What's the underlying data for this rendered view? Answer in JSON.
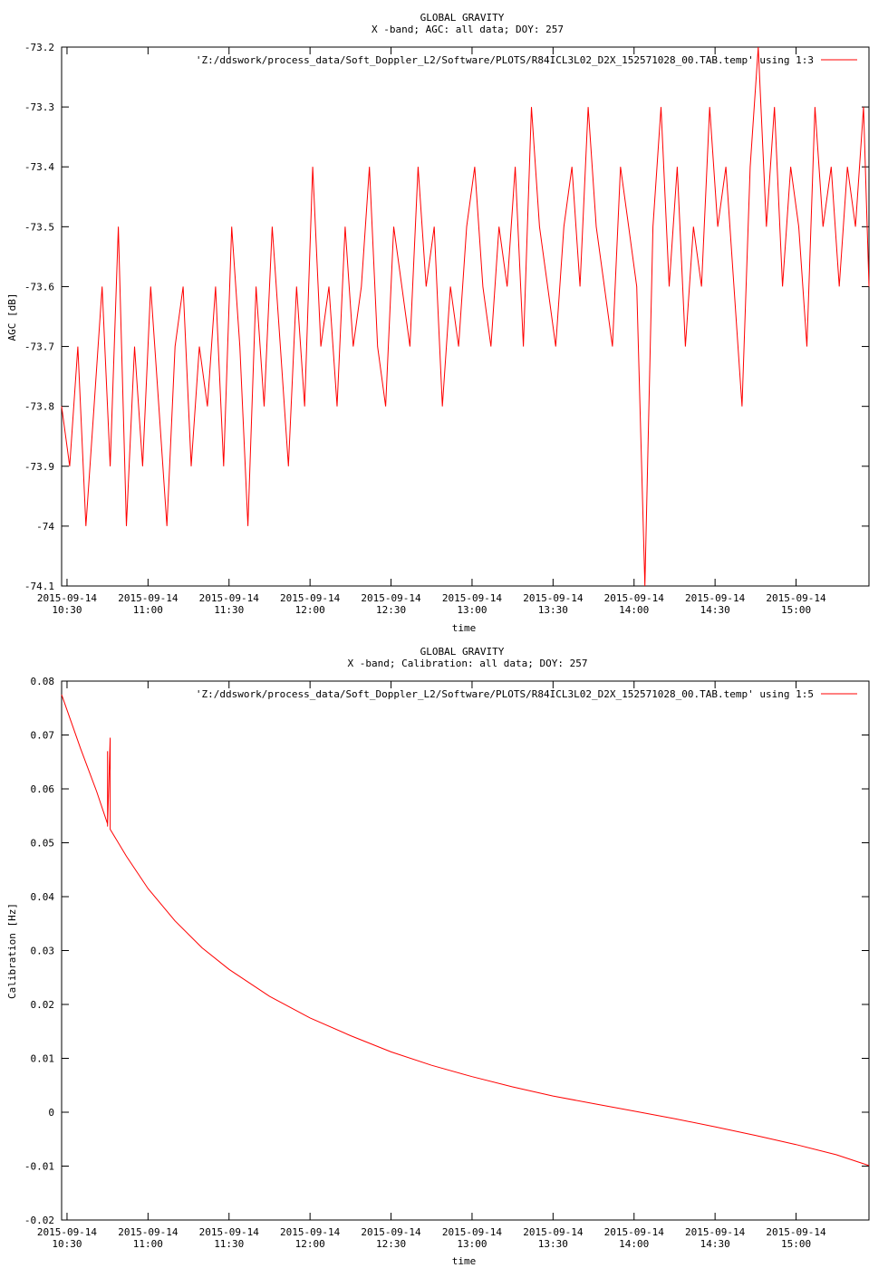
{
  "chart_data": [
    {
      "type": "line",
      "title": "GLOBAL GRAVITY",
      "subtitle": "X -band; AGC: all data; DOY: 257",
      "xlabel": "time",
      "ylabel": "AGC [dB]",
      "xlim": [
        "2015-09-14 10:28",
        "2015-09-14 15:27"
      ],
      "ylim": [
        -74.1,
        -73.2
      ],
      "x_ticks": [
        "2015-09-14 10:30",
        "2015-09-14 11:00",
        "2015-09-14 11:30",
        "2015-09-14 12:00",
        "2015-09-14 12:30",
        "2015-09-14 13:00",
        "2015-09-14 13:30",
        "2015-09-14 14:00",
        "2015-09-14 14:30",
        "2015-09-14 15:00"
      ],
      "x_tick_labels": [
        [
          "2015-09-14",
          "10:30"
        ],
        [
          "2015-09-14",
          "11:00"
        ],
        [
          "2015-09-14",
          "11:30"
        ],
        [
          "2015-09-14",
          "12:00"
        ],
        [
          "2015-09-14",
          "12:30"
        ],
        [
          "2015-09-14",
          "13:00"
        ],
        [
          "2015-09-14",
          "13:30"
        ],
        [
          "2015-09-14",
          "14:00"
        ],
        [
          "2015-09-14",
          "14:30"
        ],
        [
          "2015-09-14",
          "15:00"
        ]
      ],
      "y_ticks": [
        -73.2,
        -73.3,
        -73.4,
        -73.5,
        -73.6,
        -73.7,
        -73.8,
        -73.9,
        -74,
        -74.1
      ],
      "y_tick_labels": [
        "-73.2",
        "-73.3",
        "-73.4",
        "-73.5",
        "-73.6",
        "-73.7",
        "-73.8",
        "-73.9",
        "-74",
        "-74.1"
      ],
      "grid": false,
      "legend_position": "top-right",
      "series": [
        {
          "name": "'Z:/ddswork/process_data/Soft_Doppler_L2/Software/PLOTS/R84ICL3L02_D2X_152571028_00.TAB.temp' using 1:3",
          "color": "#ff0000",
          "x": [
            "2015-09-14 10:28",
            "2015-09-14 10:31",
            "2015-09-14 10:34",
            "2015-09-14 10:37",
            "2015-09-14 10:40",
            "2015-09-14 10:43",
            "2015-09-14 10:46",
            "2015-09-14 10:49",
            "2015-09-14 10:52",
            "2015-09-14 10:55",
            "2015-09-14 10:58",
            "2015-09-14 11:01",
            "2015-09-14 11:04",
            "2015-09-14 11:07",
            "2015-09-14 11:10",
            "2015-09-14 11:13",
            "2015-09-14 11:16",
            "2015-09-14 11:19",
            "2015-09-14 11:22",
            "2015-09-14 11:25",
            "2015-09-14 11:28",
            "2015-09-14 11:31",
            "2015-09-14 11:34",
            "2015-09-14 11:37",
            "2015-09-14 11:40",
            "2015-09-14 11:43",
            "2015-09-14 11:46",
            "2015-09-14 11:49",
            "2015-09-14 11:52",
            "2015-09-14 11:55",
            "2015-09-14 11:58",
            "2015-09-14 12:01",
            "2015-09-14 12:04",
            "2015-09-14 12:07",
            "2015-09-14 12:10",
            "2015-09-14 12:13",
            "2015-09-14 12:16",
            "2015-09-14 12:19",
            "2015-09-14 12:22",
            "2015-09-14 12:25",
            "2015-09-14 12:28",
            "2015-09-14 12:31",
            "2015-09-14 12:34",
            "2015-09-14 12:37",
            "2015-09-14 12:40",
            "2015-09-14 12:43",
            "2015-09-14 12:46",
            "2015-09-14 12:49",
            "2015-09-14 12:52",
            "2015-09-14 12:55",
            "2015-09-14 12:58",
            "2015-09-14 13:01",
            "2015-09-14 13:04",
            "2015-09-14 13:07",
            "2015-09-14 13:10",
            "2015-09-14 13:13",
            "2015-09-14 13:16",
            "2015-09-14 13:19",
            "2015-09-14 13:22",
            "2015-09-14 13:25",
            "2015-09-14 13:28",
            "2015-09-14 13:31",
            "2015-09-14 13:34",
            "2015-09-14 13:37",
            "2015-09-14 13:40",
            "2015-09-14 13:43",
            "2015-09-14 13:46",
            "2015-09-14 13:49",
            "2015-09-14 13:52",
            "2015-09-14 13:55",
            "2015-09-14 13:58",
            "2015-09-14 14:01",
            "2015-09-14 14:04",
            "2015-09-14 14:07",
            "2015-09-14 14:10",
            "2015-09-14 14:13",
            "2015-09-14 14:16",
            "2015-09-14 14:19",
            "2015-09-14 14:22",
            "2015-09-14 14:25",
            "2015-09-14 14:28",
            "2015-09-14 14:31",
            "2015-09-14 14:34",
            "2015-09-14 14:37",
            "2015-09-14 14:40",
            "2015-09-14 14:43",
            "2015-09-14 14:46",
            "2015-09-14 14:49",
            "2015-09-14 14:52",
            "2015-09-14 14:55",
            "2015-09-14 14:58",
            "2015-09-14 15:01",
            "2015-09-14 15:04",
            "2015-09-14 15:07",
            "2015-09-14 15:10",
            "2015-09-14 15:13",
            "2015-09-14 15:16",
            "2015-09-14 15:19",
            "2015-09-14 15:22",
            "2015-09-14 15:25",
            "2015-09-14 15:27"
          ],
          "y": [
            -73.8,
            -73.9,
            -73.7,
            -74.0,
            -73.8,
            -73.6,
            -73.9,
            -73.5,
            -74.0,
            -73.7,
            -73.9,
            -73.6,
            -73.8,
            -74.0,
            -73.7,
            -73.6,
            -73.9,
            -73.7,
            -73.8,
            -73.6,
            -73.9,
            -73.5,
            -73.7,
            -74.0,
            -73.6,
            -73.8,
            -73.5,
            -73.7,
            -73.9,
            -73.6,
            -73.8,
            -73.4,
            -73.7,
            -73.6,
            -73.8,
            -73.5,
            -73.7,
            -73.6,
            -73.4,
            -73.7,
            -73.8,
            -73.5,
            -73.6,
            -73.7,
            -73.4,
            -73.6,
            -73.5,
            -73.8,
            -73.6,
            -73.7,
            -73.5,
            -73.4,
            -73.6,
            -73.7,
            -73.5,
            -73.6,
            -73.4,
            -73.7,
            -73.3,
            -73.5,
            -73.6,
            -73.7,
            -73.5,
            -73.4,
            -73.6,
            -73.3,
            -73.5,
            -73.6,
            -73.7,
            -73.4,
            -73.5,
            -73.6,
            -74.1,
            -73.5,
            -73.3,
            -73.6,
            -73.4,
            -73.7,
            -73.5,
            -73.6,
            -73.3,
            -73.5,
            -73.4,
            -73.6,
            -73.8,
            -73.4,
            -73.2,
            -73.5,
            -73.3,
            -73.6,
            -73.4,
            -73.5,
            -73.7,
            -73.3,
            -73.5,
            -73.4,
            -73.6,
            -73.4,
            -73.5,
            -73.3,
            -73.6
          ]
        }
      ]
    },
    {
      "type": "line",
      "title": "GLOBAL GRAVITY",
      "subtitle": "X -band; Calibration: all data; DOY: 257",
      "xlabel": "time",
      "ylabel": "Calibration [Hz]",
      "xlim": [
        "2015-09-14 10:28",
        "2015-09-14 15:27"
      ],
      "ylim": [
        -0.02,
        0.08
      ],
      "x_ticks": [
        "2015-09-14 10:30",
        "2015-09-14 11:00",
        "2015-09-14 11:30",
        "2015-09-14 12:00",
        "2015-09-14 12:30",
        "2015-09-14 13:00",
        "2015-09-14 13:30",
        "2015-09-14 14:00",
        "2015-09-14 14:30",
        "2015-09-14 15:00"
      ],
      "x_tick_labels": [
        [
          "2015-09-14",
          "10:30"
        ],
        [
          "2015-09-14",
          "11:00"
        ],
        [
          "2015-09-14",
          "11:30"
        ],
        [
          "2015-09-14",
          "12:00"
        ],
        [
          "2015-09-14",
          "12:30"
        ],
        [
          "2015-09-14",
          "13:00"
        ],
        [
          "2015-09-14",
          "13:30"
        ],
        [
          "2015-09-14",
          "14:00"
        ],
        [
          "2015-09-14",
          "14:30"
        ],
        [
          "2015-09-14",
          "15:00"
        ]
      ],
      "y_ticks": [
        0.08,
        0.07,
        0.06,
        0.05,
        0.04,
        0.03,
        0.02,
        0.01,
        0,
        -0.01,
        -0.02
      ],
      "y_tick_labels": [
        "0.08",
        "0.07",
        "0.06",
        "0.05",
        "0.04",
        "0.03",
        "0.02",
        "0.01",
        "0",
        "-0.01",
        "-0.02"
      ],
      "grid": false,
      "legend_position": "top-right",
      "series": [
        {
          "name": "'Z:/ddswork/process_data/Soft_Doppler_L2/Software/PLOTS/R84ICL3L02_D2X_152571028_00.TAB.temp' using 1:5",
          "color": "#ff0000",
          "x": [
            "2015-09-14 10:28",
            "2015-09-14 10:35",
            "2015-09-14 10:41",
            "2015-09-14 10:45",
            "2015-09-14 10:45",
            "2015-09-14 10:45",
            "2015-09-14 10:46",
            "2015-09-14 10:46",
            "2015-09-14 10:52",
            "2015-09-14 11:00",
            "2015-09-14 11:10",
            "2015-09-14 11:20",
            "2015-09-14 11:30",
            "2015-09-14 11:45",
            "2015-09-14 12:00",
            "2015-09-14 12:15",
            "2015-09-14 12:30",
            "2015-09-14 12:45",
            "2015-09-14 13:00",
            "2015-09-14 13:15",
            "2015-09-14 13:30",
            "2015-09-14 13:45",
            "2015-09-14 14:00",
            "2015-09-14 14:15",
            "2015-09-14 14:30",
            "2015-09-14 14:45",
            "2015-09-14 15:00",
            "2015-09-14 15:15",
            "2015-09-14 15:27"
          ],
          "y": [
            0.0775,
            0.0675,
            0.0595,
            0.0535,
            0.067,
            0.053,
            0.0695,
            0.0525,
            0.0475,
            0.0415,
            0.0355,
            0.0305,
            0.0265,
            0.0215,
            0.0175,
            0.0142,
            0.0112,
            0.0087,
            0.0066,
            0.0047,
            0.003,
            0.0016,
            0.0002,
            -0.0012,
            -0.0027,
            -0.0043,
            -0.006,
            -0.0079,
            -0.0099
          ]
        }
      ]
    }
  ]
}
